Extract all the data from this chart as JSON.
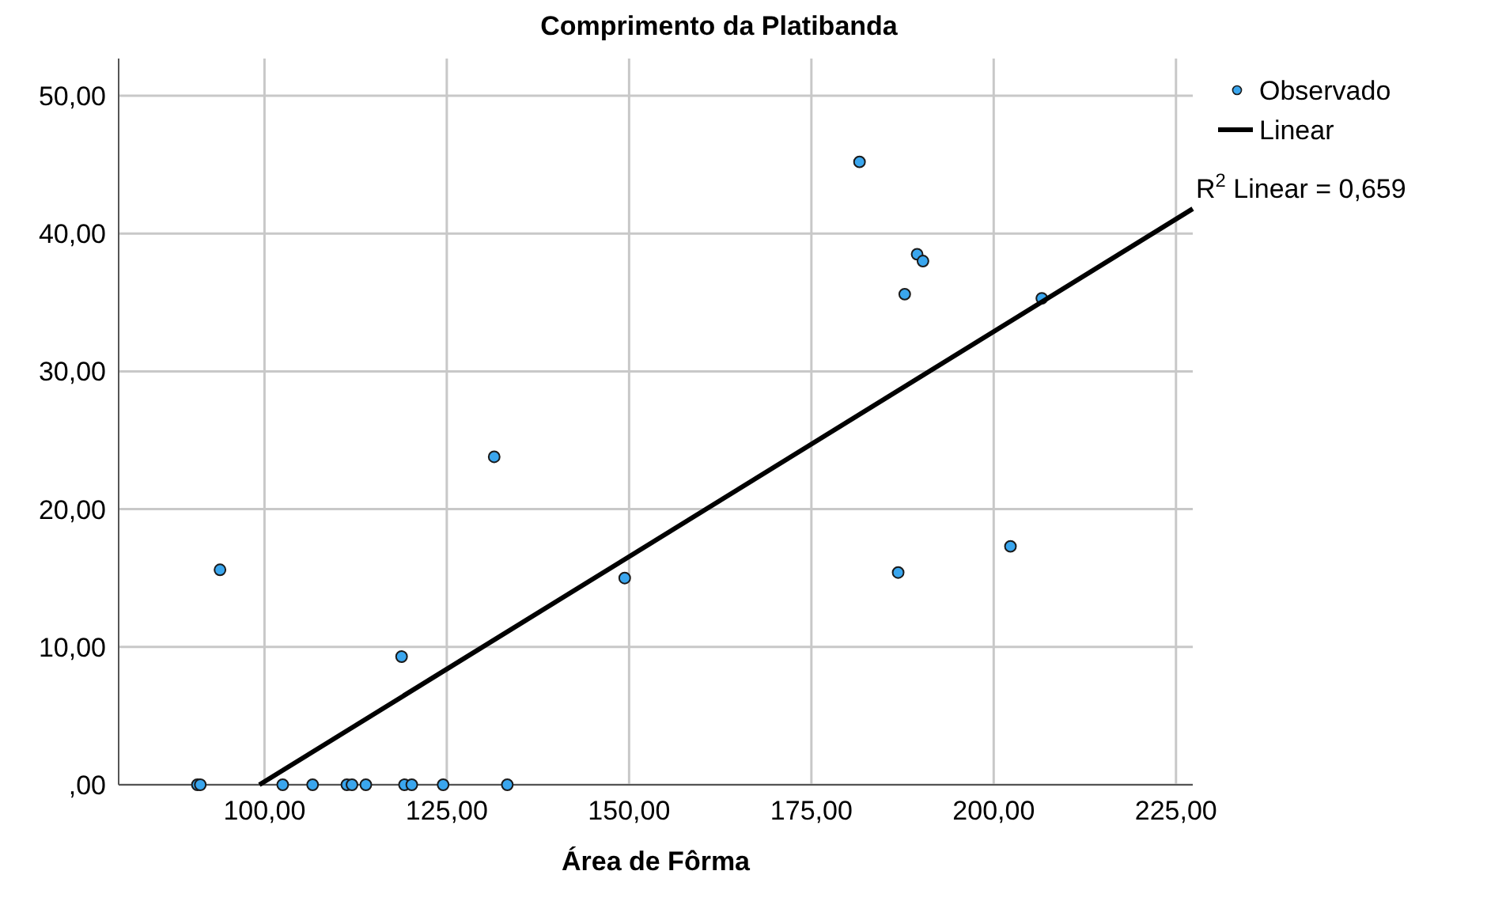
{
  "chart_data": {
    "type": "scatter",
    "title": "Comprimento da Platibanda",
    "xlabel": "Área de Fôrma",
    "xlim": [
      80,
      227.3
    ],
    "ylim": [
      0,
      52.7
    ],
    "xticks": [
      {
        "value": 100,
        "label": "100,00"
      },
      {
        "value": 125,
        "label": "125,00"
      },
      {
        "value": 150,
        "label": "150,00"
      },
      {
        "value": 175,
        "label": "175,00"
      },
      {
        "value": 200,
        "label": "200,00"
      },
      {
        "value": 225,
        "label": "225,00"
      }
    ],
    "yticks": [
      {
        "value": 0,
        "label": ",00"
      },
      {
        "value": 10,
        "label": "10,00"
      },
      {
        "value": 20,
        "label": "20,00"
      },
      {
        "value": 30,
        "label": "30,00"
      },
      {
        "value": 40,
        "label": "40,00"
      },
      {
        "value": 50,
        "label": "50,00"
      }
    ],
    "grid": true,
    "legend": "top right",
    "annotations": [
      "R$^{2}$ Linear = 0,659"
    ],
    "series": [
      {
        "name": "Observado",
        "marker": "circle",
        "color": "#3aa6ee",
        "x": [
          90.8,
          91.2,
          93.9,
          102.5,
          106.6,
          111.3,
          112.0,
          113.9,
          118.8,
          119.2,
          120.2,
          124.5,
          131.5,
          133.3,
          149.4,
          181.6,
          189.5,
          190.3,
          187.8,
          206.6,
          186.9,
          202.3
        ],
        "values": [
          0,
          0,
          15.6,
          0,
          0,
          0,
          0,
          0,
          9.3,
          0,
          0,
          0,
          23.8,
          0,
          15.0,
          45.2,
          38.5,
          38.0,
          35.6,
          35.3,
          15.4,
          17.3
        ]
      },
      {
        "name": "Linear",
        "type": "line",
        "color": "#000000",
        "x": [
          99.3,
          227.3
        ],
        "values": [
          0,
          41.8
        ],
        "line_style": "solid"
      }
    ]
  }
}
